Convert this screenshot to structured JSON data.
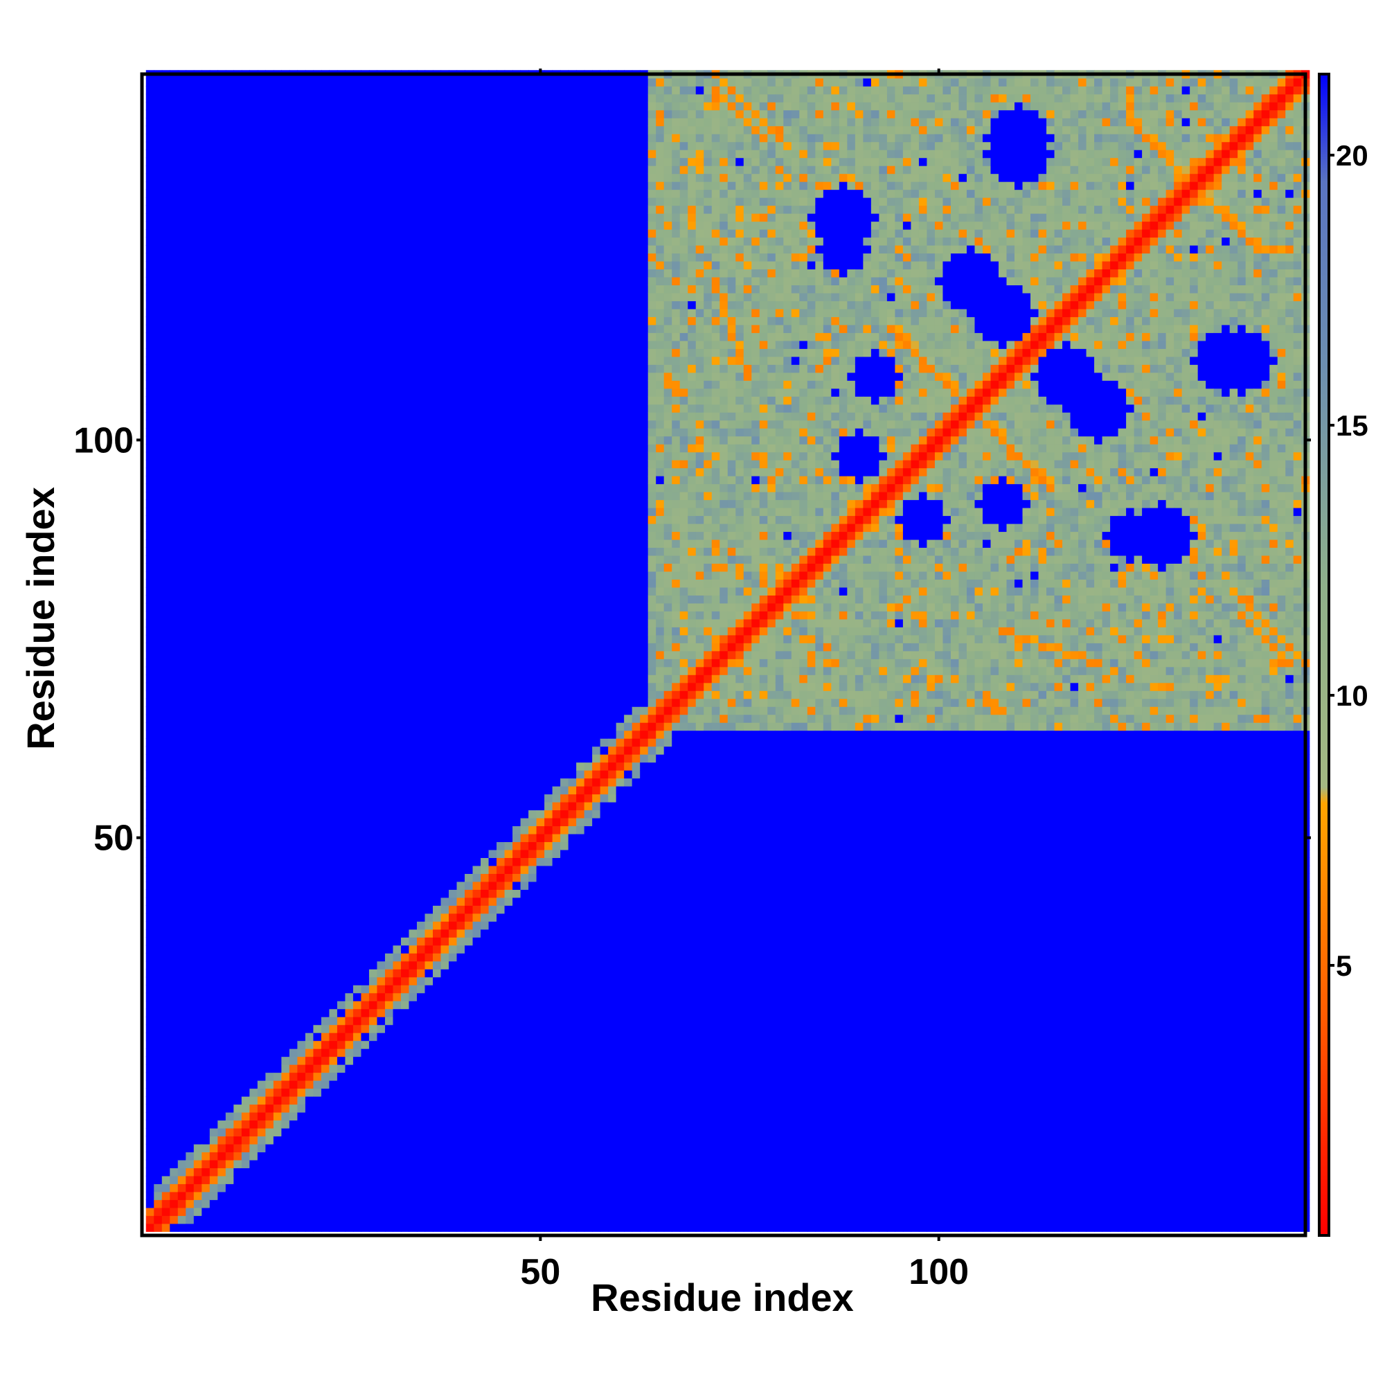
{
  "chart_data": {
    "type": "heatmap",
    "title": "",
    "xlabel": "Residue index",
    "ylabel": "Residue index",
    "n_residues": 146,
    "xlim": [
      1,
      146
    ],
    "ylim": [
      1,
      146
    ],
    "x_ticks": [
      50,
      100
    ],
    "y_ticks": [
      50,
      100
    ],
    "x_tick_labels": [
      "50",
      "100"
    ],
    "y_tick_labels": [
      "50",
      "100"
    ],
    "colorbar": {
      "range": [
        0,
        21.5
      ],
      "ticks": [
        5,
        10,
        15,
        20
      ],
      "tick_labels": [
        "5",
        "10",
        "15",
        "20"
      ],
      "stops": [
        {
          "value": 0,
          "color": "#ff0000"
        },
        {
          "value": 4,
          "color": "#ff5a00"
        },
        {
          "value": 8,
          "color": "#ffa500"
        },
        {
          "value": 8.3,
          "color": "#a4b882"
        },
        {
          "value": 12,
          "color": "#8fb08a"
        },
        {
          "value": 16,
          "color": "#6d8fb0"
        },
        {
          "value": 19.5,
          "color": "#5a74c2"
        },
        {
          "value": 21.5,
          "color": "#0000ff"
        }
      ]
    },
    "background_value": 21.5,
    "description_of_pattern": {
      "diagonal": {
        "from": 1,
        "to": 146,
        "core_value": 0.5,
        "band_halfwidth": 1.5,
        "halo_value": 12,
        "halo_halfwidth": 5
      },
      "domain_block": {
        "from": 64,
        "to": 146,
        "mean_value": 13
      }
    },
    "features": [
      {
        "kind": "diagonal_band",
        "from": 1,
        "to": 146,
        "value": 1
      },
      {
        "kind": "halo",
        "from": 1,
        "to": 64,
        "width": 4,
        "value": 12
      },
      {
        "kind": "block",
        "i_range": [
          64,
          146
        ],
        "j_range": [
          64,
          146
        ],
        "value": 13
      },
      {
        "kind": "anti_diagonal",
        "center": [
          104,
          104
        ],
        "length": 10,
        "value": 6
      },
      {
        "kind": "anti_diagonal",
        "center": [
          132,
          132
        ],
        "length": 8,
        "value": 6
      },
      {
        "kind": "off_diagonal_streak",
        "i_range": [
          72,
          80
        ],
        "j_range": [
          138,
          146
        ],
        "value": 6
      },
      {
        "kind": "off_diagonal_streak",
        "i_range": [
          108,
          120
        ],
        "j_range": [
          72,
          76
        ],
        "value": 6
      },
      {
        "kind": "off_diagonal_streak",
        "i_range": [
          138,
          144
        ],
        "j_range": [
          72,
          78
        ],
        "value": 6
      },
      {
        "kind": "hole",
        "center": [
          88,
          128
        ],
        "radius": 4
      },
      {
        "kind": "hole",
        "center": [
          110,
          138
        ],
        "radius": 4
      },
      {
        "kind": "hole",
        "center": [
          108,
          116
        ],
        "radius": 4
      },
      {
        "kind": "hole",
        "center": [
          120,
          104
        ],
        "radius": 4
      },
      {
        "kind": "hole",
        "center": [
          98,
          90
        ],
        "radius": 3
      },
      {
        "kind": "hole",
        "center": [
          136,
          110
        ],
        "radius": 4
      },
      {
        "kind": "hole",
        "center": [
          92,
          108
        ],
        "radius": 3
      },
      {
        "kind": "hole",
        "center": [
          124,
          88
        ],
        "radius": 3
      }
    ]
  }
}
